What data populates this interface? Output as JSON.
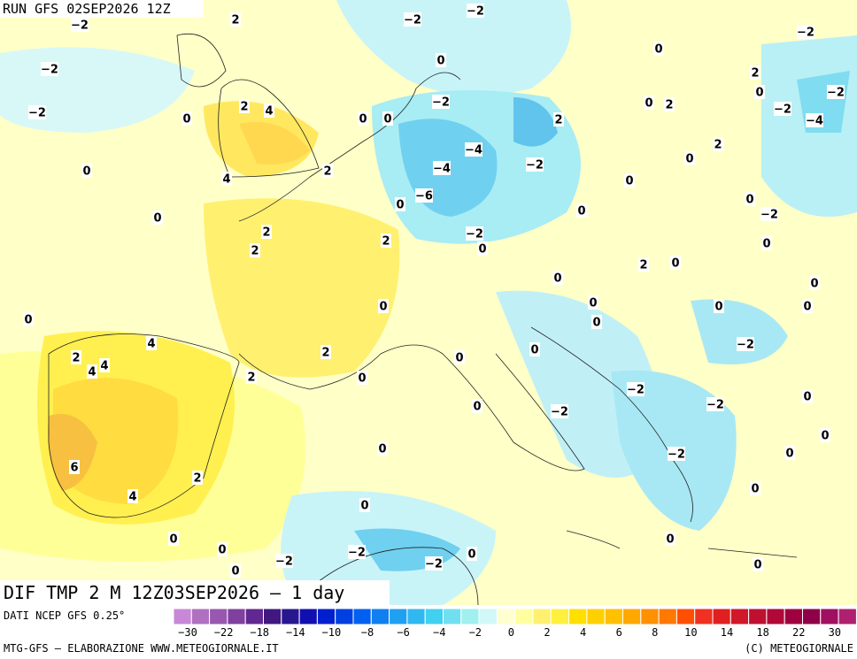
{
  "header": {
    "run": "RUN GFS 02SEP2026 12Z",
    "title": "DIF TMP 2 M 12Z03SEP2026 — 1 day"
  },
  "footer": {
    "source": "DATI NCEP GFS 0.25°",
    "credit": "MTG-GFS — ELABORAZIONE WWW.METEOGIORNALE.IT",
    "copyright": "(C) METEOGIORNALE"
  },
  "colorbar": {
    "labels": [
      "−30",
      "−22",
      "−18",
      "−14",
      "−10",
      "−8",
      "−6",
      "−4",
      "−2",
      "0",
      "2",
      "4",
      "6",
      "8",
      "10",
      "14",
      "18",
      "22",
      "30"
    ],
    "colors": [
      "#c888d8",
      "#b070c0",
      "#9858b0",
      "#8040a0",
      "#602890",
      "#401880",
      "#281890",
      "#1010b0",
      "#0020d0",
      "#0040e0",
      "#0060f0",
      "#1080f0",
      "#20a0f0",
      "#30b8f0",
      "#40d0f0",
      "#70e0f0",
      "#a0f0f0",
      "#d0f8f8",
      "#ffffd0",
      "#ffffa0",
      "#fff070",
      "#fff040",
      "#ffe000",
      "#ffd000",
      "#ffc000",
      "#ffa800",
      "#ff9000",
      "#ff7800",
      "#ff5000",
      "#f03020",
      "#e02020",
      "#d01828",
      "#c01030",
      "#b00838",
      "#a00040",
      "#900048",
      "#a01060",
      "#b02070"
    ]
  },
  "map_labels": [
    "−2",
    "2",
    "−2",
    "−2",
    "−2",
    "−2",
    "0",
    "0",
    "2",
    "0",
    "−2",
    "−2",
    "0",
    "2",
    "4",
    "0",
    "0",
    "−2",
    "0",
    "2",
    "−2",
    "−4",
    "2",
    "−4",
    "2",
    "0",
    "4",
    "2",
    "−4",
    "−2",
    "0",
    "0",
    "−6",
    "0",
    "0",
    "0",
    "0",
    "−2",
    "2",
    "−2",
    "0",
    "2",
    "2",
    "0",
    "2",
    "0",
    "0",
    "0",
    "0",
    "0",
    "0",
    "0",
    "0",
    "0",
    "4",
    "−2",
    "2",
    "4",
    "4",
    "2",
    "0",
    "0",
    "2",
    "0",
    "−2",
    "0",
    "0",
    "−2",
    "−2",
    "0",
    "0",
    "−2",
    "0",
    "6",
    "2",
    "0",
    "4",
    "0",
    "0",
    "0",
    "0",
    "−2",
    "0",
    "−2",
    "−2",
    "0",
    "0"
  ]
}
